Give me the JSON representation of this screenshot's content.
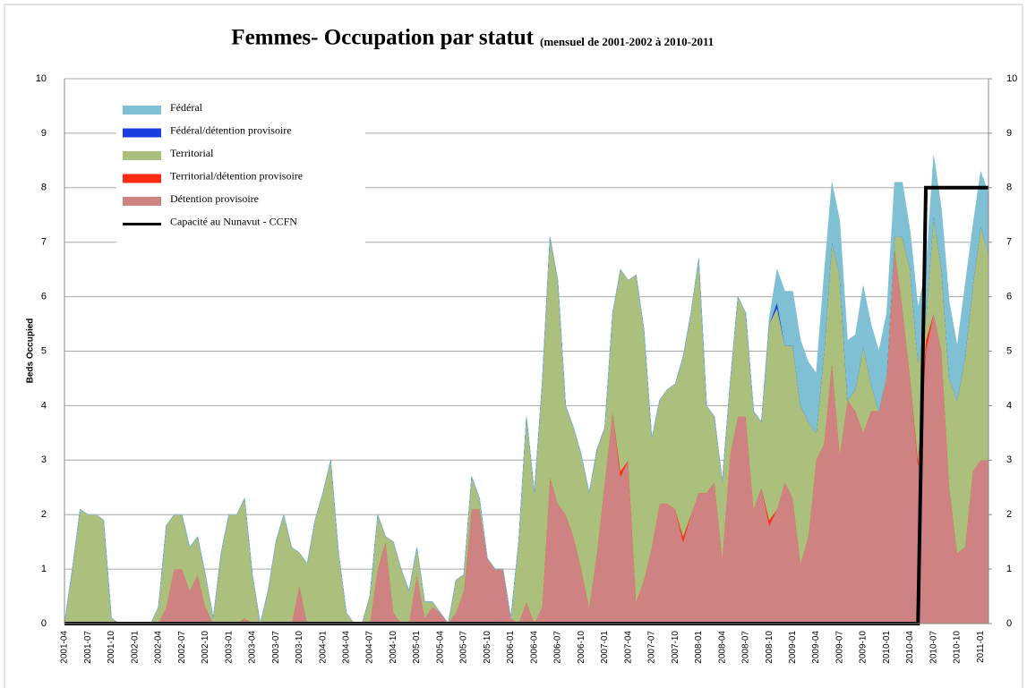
{
  "chart_data": {
    "type": "area",
    "title": "Femmes- Occupation par statut",
    "subtitle": "(mensuel de 2001-2002 à 2010-2011",
    "y_label": "Beds Occupied",
    "ylim": [
      0,
      10
    ],
    "yticks": [
      0,
      1,
      2,
      3,
      4,
      5,
      6,
      7,
      8,
      9,
      10
    ],
    "y2lim": [
      0,
      10
    ],
    "y2ticks": [
      0,
      1,
      2,
      3,
      4,
      5,
      6,
      7,
      8,
      9,
      10
    ],
    "grid": true,
    "legend": "upper left",
    "stacked": true,
    "categories": [
      "2001-04",
      null,
      null,
      "2001-07",
      null,
      null,
      "2001-10",
      null,
      null,
      "2002-01",
      null,
      null,
      "2002-04",
      null,
      null,
      "2002-07",
      null,
      null,
      "2002-10",
      null,
      null,
      "2003-01",
      null,
      null,
      "2003-04",
      null,
      null,
      "2003-07",
      null,
      null,
      "2003-10",
      null,
      null,
      "2004-01",
      null,
      null,
      "2004-04",
      null,
      null,
      "2004-07",
      null,
      null,
      "2004-10",
      null,
      null,
      "2005-01",
      null,
      null,
      "2005-04",
      null,
      null,
      "2005-07",
      null,
      null,
      "2005-10",
      null,
      null,
      "2006-01",
      null,
      null,
      "2006-04",
      null,
      null,
      "2006-07",
      null,
      null,
      "2006-10",
      null,
      null,
      "2007-01",
      null,
      null,
      "2007-04",
      null,
      null,
      "2007-07",
      null,
      null,
      "2007-10",
      null,
      null,
      "2008-01",
      null,
      null,
      "2008-04",
      null,
      null,
      "2008-07",
      null,
      null,
      "2008-10",
      null,
      null,
      "2009-01",
      null,
      null,
      "2009-04",
      null,
      null,
      "2009-07",
      null,
      null,
      "2009-10",
      null,
      null,
      "2010-01",
      null,
      null,
      "2010-04",
      null,
      null,
      "2010-07",
      null,
      null,
      "2010-10",
      null,
      null,
      "2011-01",
      null
    ],
    "series": [
      {
        "name": "Fédéral",
        "color": "#80c0d4",
        "values": [
          0,
          0,
          0,
          0,
          0,
          0,
          0,
          0,
          0,
          0,
          0,
          0,
          0,
          0,
          0,
          0,
          0,
          0,
          0,
          0,
          0,
          0,
          0,
          0,
          0,
          0,
          0,
          0,
          0,
          0,
          0,
          0,
          0,
          0,
          0,
          0,
          0,
          0,
          0,
          0,
          0,
          0,
          0,
          0,
          0,
          0,
          0,
          0,
          0,
          0,
          0,
          0,
          0,
          0,
          0,
          0,
          0,
          0,
          0,
          0,
          0,
          0,
          0,
          0,
          0,
          0,
          0,
          0,
          0,
          0,
          0,
          0,
          0,
          0,
          0,
          0,
          0,
          0,
          0,
          0,
          0,
          0,
          0,
          0,
          0,
          0,
          0,
          0,
          0,
          0,
          0.1,
          0.6,
          1,
          1,
          1.2,
          1.1,
          1.1,
          1.4,
          1.1,
          1,
          1.1,
          1,
          1.1,
          1.1,
          1.1,
          1.1,
          1,
          1,
          0.7,
          1,
          0.9,
          1.1,
          1.1,
          1.4,
          1,
          1.3,
          1.1,
          1,
          1.1
        ]
      },
      {
        "name": "Fédéral/détention provisoire",
        "color": "#1a3de0",
        "values": [
          0,
          0,
          0,
          0,
          0,
          0,
          0,
          0,
          0,
          0,
          0,
          0,
          0,
          0,
          0,
          0,
          0,
          0,
          0,
          0,
          0,
          0,
          0,
          0,
          0,
          0,
          0,
          0,
          0,
          0,
          0,
          0,
          0,
          0,
          0,
          0,
          0,
          0,
          0,
          0,
          0,
          0,
          0,
          0,
          0,
          0,
          0,
          0,
          0,
          0,
          0,
          0,
          0,
          0,
          0,
          0,
          0,
          0,
          0,
          0,
          0,
          0,
          0,
          0,
          0,
          0,
          0,
          0,
          0,
          0,
          0,
          0,
          0,
          0,
          0,
          0,
          0,
          0,
          0,
          0,
          0,
          0,
          0,
          0,
          0,
          0,
          0,
          0,
          0,
          0,
          0,
          0.1,
          0,
          0,
          0,
          0,
          0,
          0,
          0,
          0,
          0,
          0,
          0,
          0,
          0,
          0,
          0,
          0,
          0,
          0,
          0,
          0,
          0,
          0,
          0,
          0,
          0,
          0,
          0
        ]
      },
      {
        "name": "Territorial",
        "color": "#aac07c",
        "values": [
          0,
          1,
          2.1,
          2,
          2,
          1.9,
          0.1,
          0,
          0,
          0,
          0,
          0,
          0.3,
          1.5,
          1,
          1,
          0.8,
          0.7,
          0.6,
          0.1,
          1.3,
          2,
          2,
          2.2,
          0.9,
          0,
          0.6,
          1.5,
          2,
          1.4,
          0.6,
          1.1,
          1.9,
          2.4,
          3,
          1.3,
          0.2,
          0,
          0,
          0.5,
          1,
          0.1,
          1.3,
          1,
          0.6,
          0.5,
          0.3,
          0.1,
          0,
          0,
          0.6,
          0.3,
          0.6,
          0.2,
          0,
          0,
          0,
          0,
          1.5,
          3.4,
          2.4,
          4.1,
          4.4,
          4.1,
          2,
          2,
          2.1,
          2.1,
          1.9,
          1,
          1.8,
          3.7,
          3.3,
          6,
          4.6,
          2,
          1.9,
          2.1,
          2.3,
          3.3,
          3.7,
          4.3,
          1.6,
          1.2,
          1.4,
          1.3,
          2.2,
          1.9,
          1.8,
          1.2,
          3.6,
          3.7,
          2.5,
          2.8,
          2.9,
          2.1,
          0.5,
          1.7,
          2.2,
          3.3,
          0,
          0.4,
          1.6,
          0.5,
          0,
          0.1,
          0.2,
          1.3,
          2,
          1.8,
          0.4,
          1.8,
          1.5,
          2,
          2.8,
          3.5,
          3.4,
          4.3,
          3.8
        ]
      },
      {
        "name": "Territorial/détention provisoire",
        "color": "#ff2a10",
        "values": [
          0,
          0,
          0,
          0,
          0,
          0,
          0,
          0,
          0,
          0,
          0,
          0,
          0,
          0,
          0,
          0,
          0,
          0,
          0,
          0,
          0,
          0,
          0,
          0,
          0,
          0,
          0,
          0,
          0,
          0,
          0,
          0,
          0,
          0,
          0,
          0,
          0,
          0,
          0,
          0,
          0,
          0,
          0,
          0,
          0,
          0,
          0,
          0,
          0,
          0,
          0,
          0,
          0,
          0,
          0,
          0,
          0,
          0,
          0,
          0,
          0,
          0,
          0,
          0,
          0,
          0,
          0,
          0,
          0,
          0,
          0,
          0.1,
          0,
          0,
          0,
          0,
          0,
          0,
          0,
          0.1,
          0,
          0,
          0,
          0,
          0,
          0,
          0,
          0,
          0,
          0,
          0.1,
          0,
          0,
          0,
          0,
          0,
          0,
          0,
          0,
          0,
          0,
          0,
          0,
          0,
          0,
          0,
          0,
          0,
          0,
          0.1,
          0.2,
          0,
          0,
          0,
          0,
          0,
          0,
          0,
          0
        ]
      },
      {
        "name": "Détention provisoire",
        "color": "#cf8282",
        "values": [
          0,
          0,
          0,
          0,
          0,
          0,
          0,
          0,
          0,
          0,
          0,
          0,
          0,
          0.3,
          1,
          1,
          0.6,
          0.9,
          0.3,
          0,
          0,
          0,
          0,
          0.1,
          0,
          0,
          0,
          0,
          0,
          0,
          0.7,
          0,
          0,
          0,
          0,
          0,
          0,
          0,
          0,
          0,
          1,
          1.5,
          0.2,
          0,
          0,
          0.9,
          0.1,
          0.3,
          0.2,
          0,
          0.2,
          0.6,
          2.1,
          2.1,
          1.2,
          1,
          1,
          0.1,
          0,
          0.4,
          0,
          0.3,
          2.7,
          2.2,
          2,
          1.6,
          1,
          0.3,
          1.3,
          2.6,
          3.9,
          2.7,
          3,
          0.4,
          0.8,
          1.4,
          2.2,
          2.2,
          2.1,
          1.5,
          2,
          2.4,
          2.4,
          2.6,
          1.2,
          3.1,
          3.8,
          3.8,
          2.1,
          2.5,
          1.8,
          2.1,
          2.6,
          2.3,
          1.1,
          1.6,
          3,
          3.3,
          4.8,
          3.1,
          4.1,
          3.9,
          3.5,
          3.9,
          3.9,
          4.5,
          6.9,
          5.8,
          4.5,
          2.9,
          5,
          5.7,
          5,
          2.5,
          1.3,
          1.4,
          2.8,
          3,
          3
        ]
      },
      {
        "name": "Capacité au Nunavut - CCFN",
        "color": "#000000",
        "type": "line",
        "values": [
          0,
          0,
          0,
          0,
          0,
          0,
          0,
          0,
          0,
          0,
          0,
          0,
          0,
          0,
          0,
          0,
          0,
          0,
          0,
          0,
          0,
          0,
          0,
          0,
          0,
          0,
          0,
          0,
          0,
          0,
          0,
          0,
          0,
          0,
          0,
          0,
          0,
          0,
          0,
          0,
          0,
          0,
          0,
          0,
          0,
          0,
          0,
          0,
          0,
          0,
          0,
          0,
          0,
          0,
          0,
          0,
          0,
          0,
          0,
          0,
          0,
          0,
          0,
          0,
          0,
          0,
          0,
          0,
          0,
          0,
          0,
          0,
          0,
          0,
          0,
          0,
          0,
          0,
          0,
          0,
          0,
          0,
          0,
          0,
          0,
          0,
          0,
          0,
          0,
          0,
          0,
          0,
          0,
          0,
          0,
          0,
          0,
          0,
          0,
          0,
          0,
          0,
          0,
          0,
          0,
          0,
          0,
          0,
          0,
          0,
          8,
          8,
          8,
          8,
          8,
          8,
          8,
          8,
          8
        ]
      }
    ]
  }
}
